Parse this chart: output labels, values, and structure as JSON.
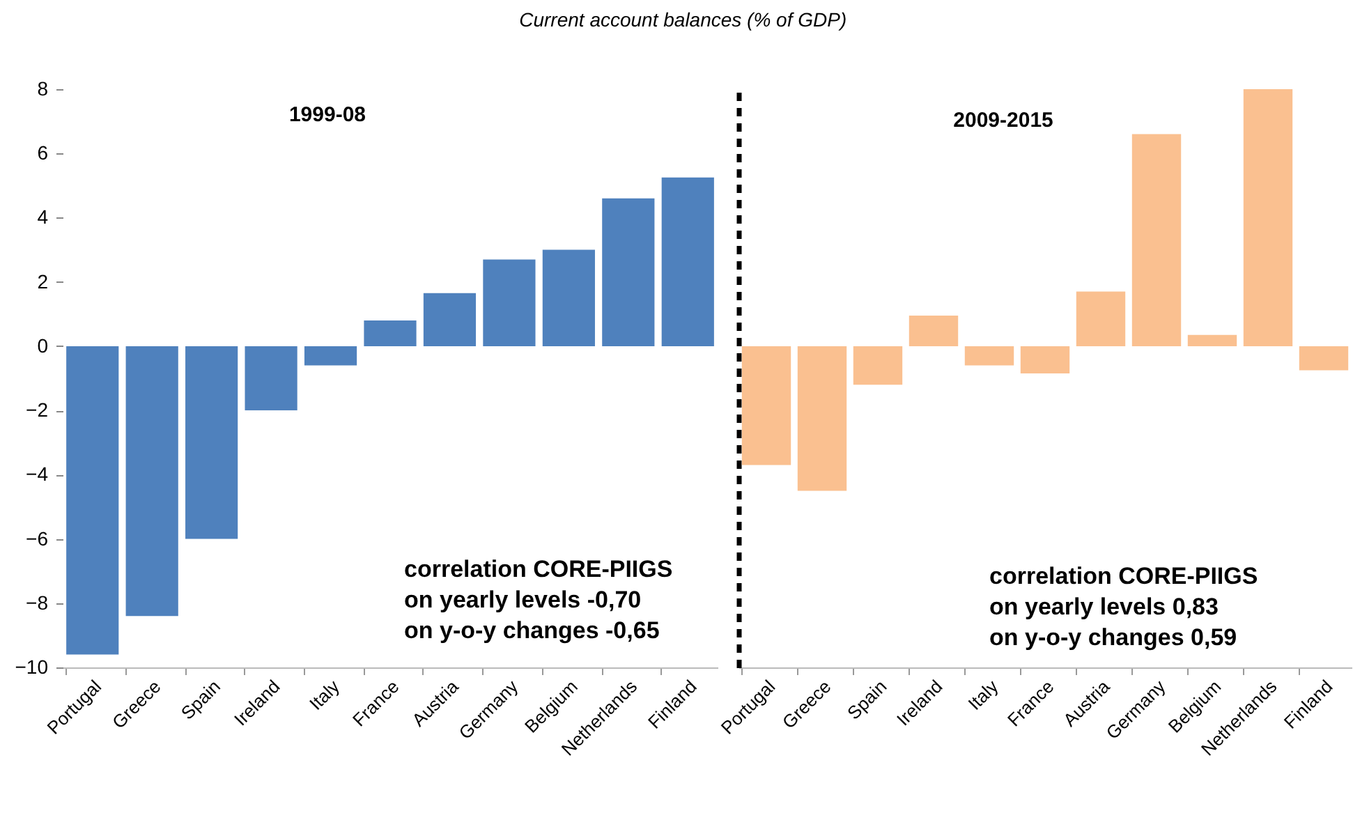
{
  "chart_data": [
    {
      "type": "bar",
      "title": "Current account balances (% of GDP)",
      "categories": [
        "Portugal",
        "Greece",
        "Spain",
        "Ireland",
        "Italy",
        "France",
        "Austria",
        "Germany",
        "Belgium",
        "Netherlands",
        "Finland"
      ],
      "series": [
        {
          "color": "#4f81bd",
          "values": [
            -9.6,
            -8.4,
            -6.0,
            -2.0,
            -0.6,
            0.8,
            1.65,
            2.7,
            3.0,
            4.6,
            5.25
          ]
        }
      ],
      "ylim": [
        -10,
        8
      ],
      "yticks": [
        -10,
        -8,
        -6,
        -4,
        -2,
        0,
        2,
        4,
        6,
        8
      ],
      "grid": false,
      "annotations": [
        "1999-08",
        "correlation CORE-PIIGS\non yearly levels -0,70\non y-o-y changes -0,65"
      ]
    },
    {
      "type": "bar",
      "categories": [
        "Portugal",
        "Greece",
        "Spain",
        "Ireland",
        "Italy",
        "France",
        "Austria",
        "Germany",
        "Belgium",
        "Netherlands",
        "Finland"
      ],
      "series": [
        {
          "color": "#fac090",
          "values": [
            -3.7,
            -4.5,
            -1.2,
            0.95,
            -0.6,
            -0.85,
            1.7,
            6.6,
            0.35,
            8.0,
            -0.75
          ]
        }
      ],
      "ylim": [
        -10,
        8
      ],
      "yticks": [
        -10,
        -8,
        -6,
        -4,
        -2,
        0,
        2,
        4,
        6,
        8
      ],
      "grid": false,
      "tick_labels": "x",
      "annotations": [
        "2009-2015",
        "correlation CORE-PIIGS\non yearly levels 0,83\non y-o-y changes 0,59"
      ]
    }
  ]
}
